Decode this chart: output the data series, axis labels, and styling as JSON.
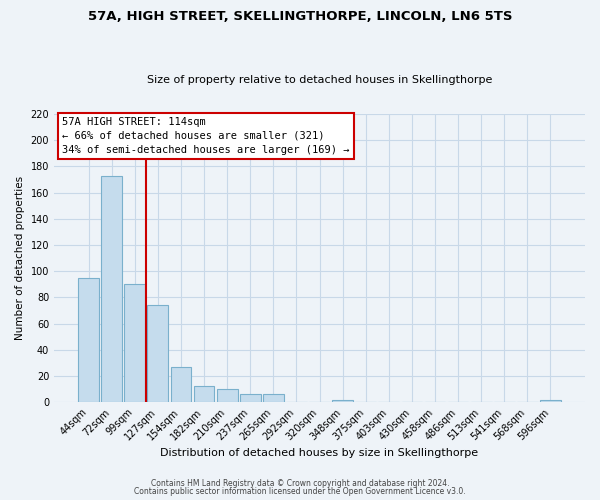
{
  "title": "57A, HIGH STREET, SKELLINGTHORPE, LINCOLN, LN6 5TS",
  "subtitle": "Size of property relative to detached houses in Skellingthorpe",
  "xlabel": "Distribution of detached houses by size in Skellingthorpe",
  "ylabel": "Number of detached properties",
  "bar_labels": [
    "44sqm",
    "72sqm",
    "99sqm",
    "127sqm",
    "154sqm",
    "182sqm",
    "210sqm",
    "237sqm",
    "265sqm",
    "292sqm",
    "320sqm",
    "348sqm",
    "375sqm",
    "403sqm",
    "430sqm",
    "458sqm",
    "486sqm",
    "513sqm",
    "541sqm",
    "568sqm",
    "596sqm"
  ],
  "bar_values": [
    95,
    173,
    90,
    74,
    27,
    12,
    10,
    6,
    6,
    0,
    0,
    2,
    0,
    0,
    0,
    0,
    0,
    0,
    0,
    0,
    2
  ],
  "bar_color": "#c5dced",
  "bar_edge_color": "#7ab0cc",
  "ylim": [
    0,
    220
  ],
  "yticks": [
    0,
    20,
    40,
    60,
    80,
    100,
    120,
    140,
    160,
    180,
    200,
    220
  ],
  "vline_color": "#cc0000",
  "annotation_title": "57A HIGH STREET: 114sqm",
  "annotation_line1": "← 66% of detached houses are smaller (321)",
  "annotation_line2": "34% of semi-detached houses are larger (169) →",
  "footer1": "Contains HM Land Registry data © Crown copyright and database right 2024.",
  "footer2": "Contains public sector information licensed under the Open Government Licence v3.0.",
  "grid_color": "#c8d8e8",
  "background_color": "#eef3f8"
}
